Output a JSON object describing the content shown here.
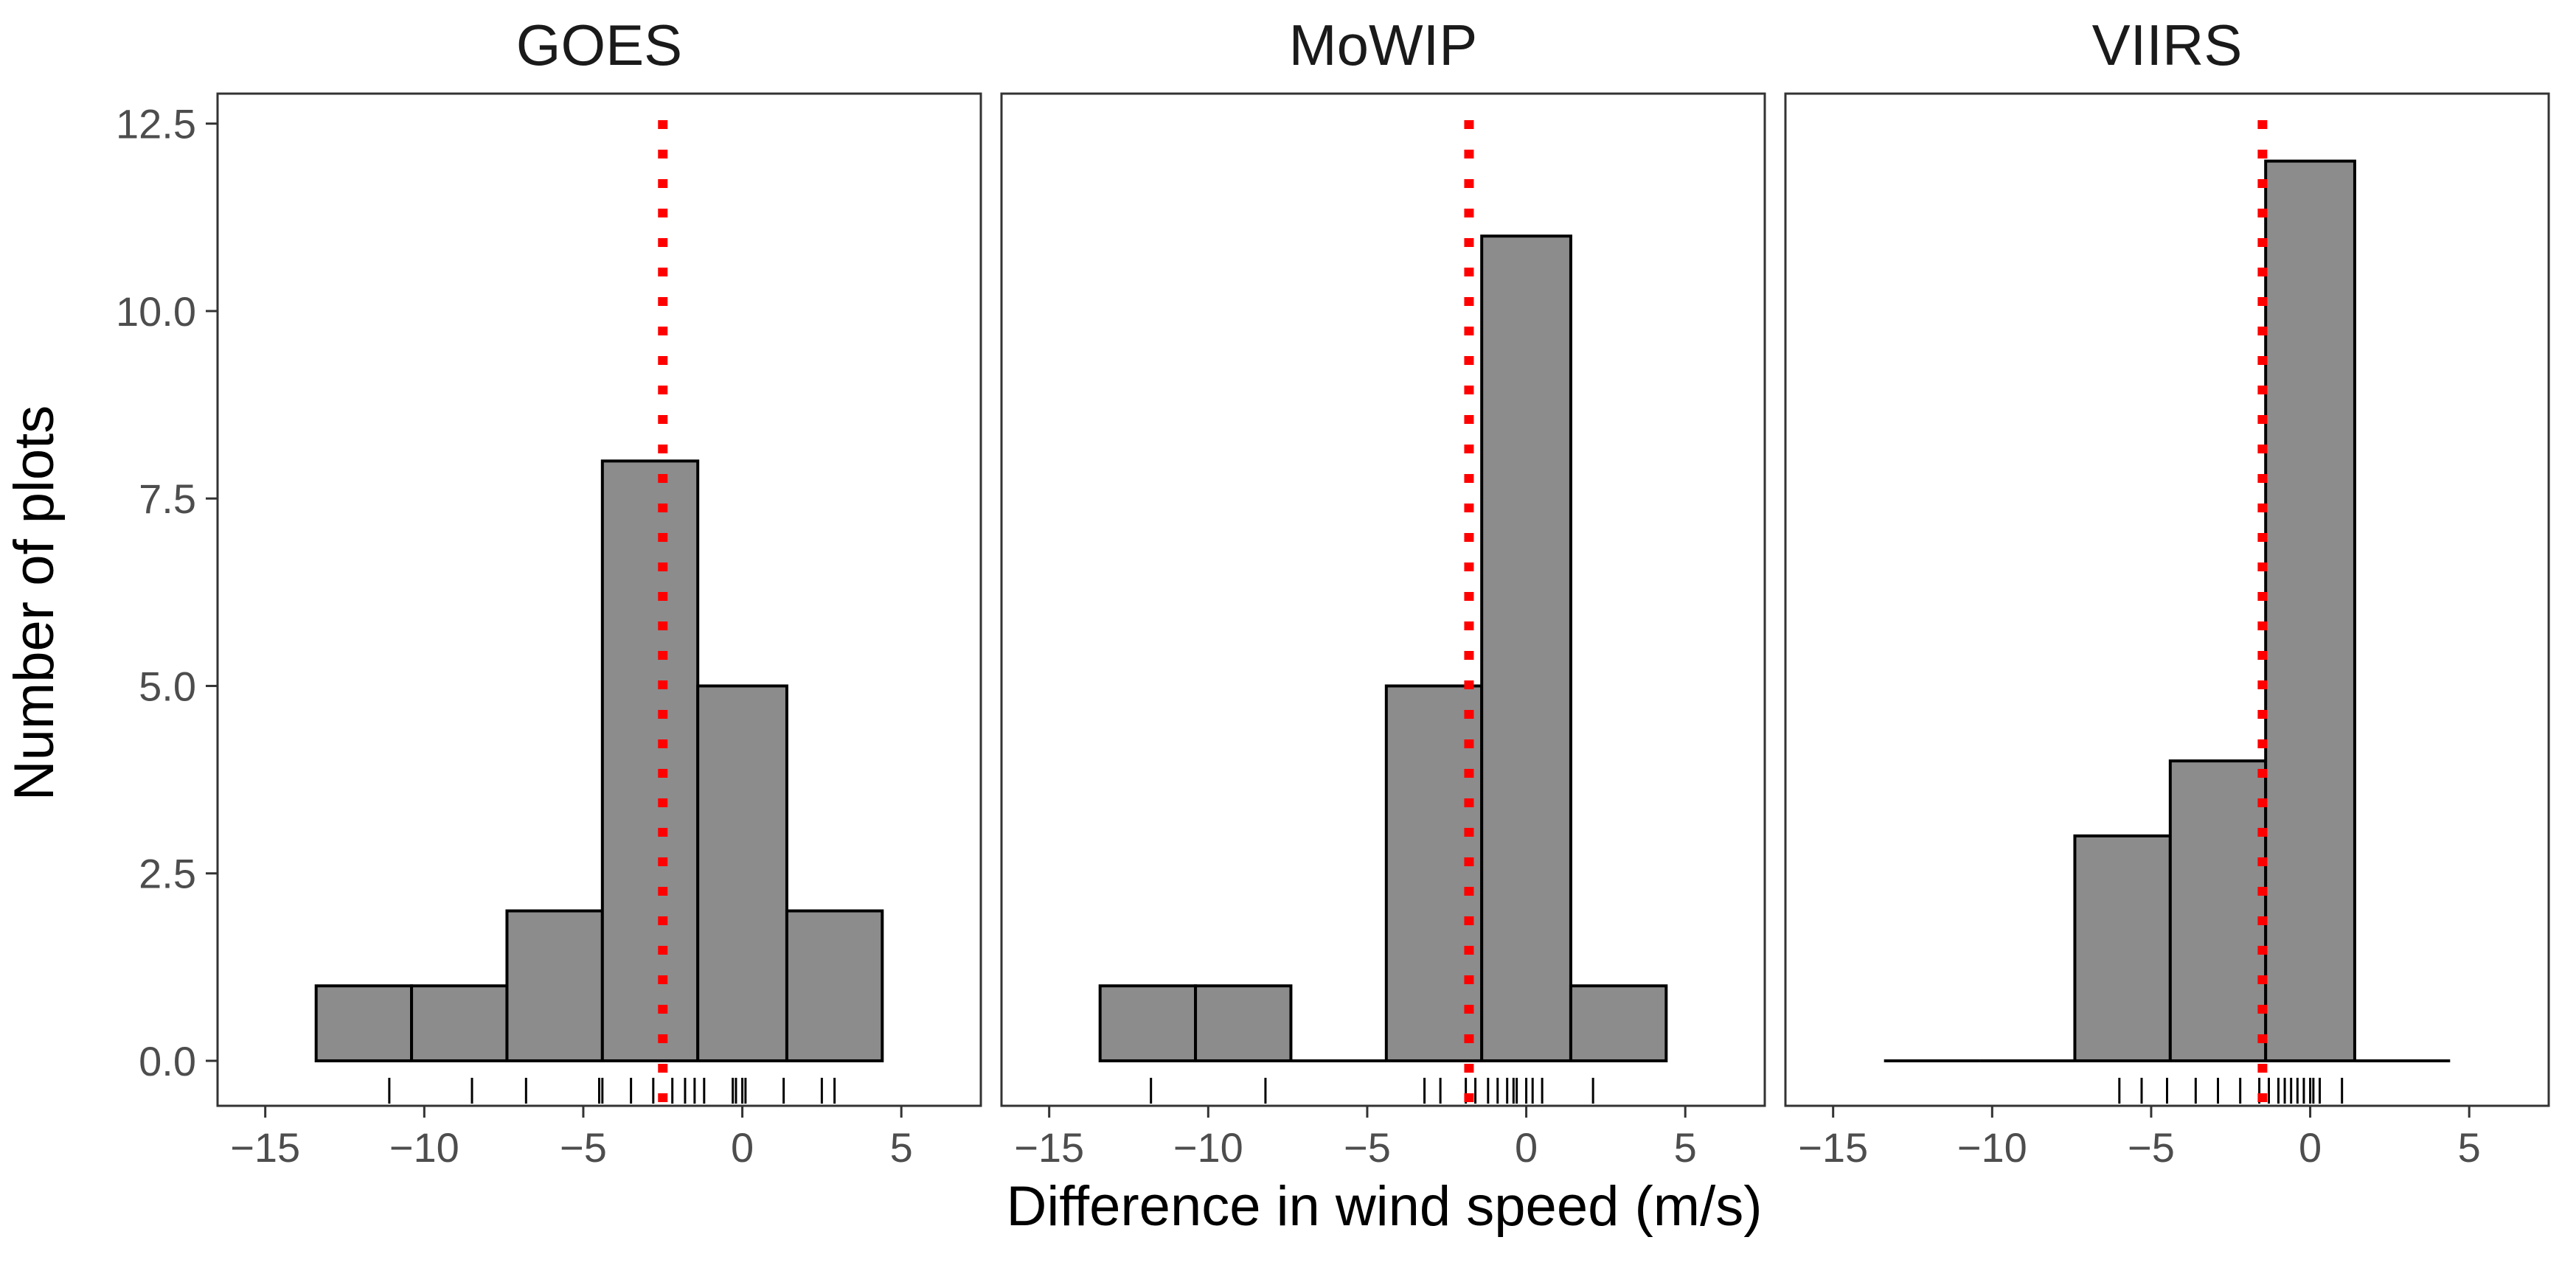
{
  "chart_data": {
    "type": "histogram",
    "xlabel": "Difference in wind speed (m/s)",
    "ylabel": "Number of plots",
    "xlim": [
      -16.5,
      7.5
    ],
    "ylim": [
      -0.6,
      12.9
    ],
    "x_ticks": [
      -15,
      -10,
      -5,
      0,
      5
    ],
    "x_tick_labels": [
      "−15",
      "−10",
      "−5",
      "0",
      "5"
    ],
    "y_ticks": [
      0,
      2.5,
      5,
      7.5,
      10,
      12.5
    ],
    "y_tick_labels": [
      "0.0",
      "2.5",
      "5.0",
      "7.5",
      "10.0",
      "12.5"
    ],
    "bin_edges": [
      -13.4,
      -10.4,
      -7.4,
      -4.4,
      -1.4,
      1.4,
      4.4
    ],
    "bar_fill": "#8c8c8c",
    "bar_stroke": "#000000",
    "mean_line_color": "#ff0000",
    "panels": [
      {
        "title": "GOES",
        "counts": [
          1,
          1,
          2,
          8,
          5,
          2
        ],
        "mean": -2.5,
        "rug": [
          -11.1,
          -8.5,
          -6.8,
          -4.5,
          -4.4,
          -3.5,
          -2.8,
          -2.2,
          -1.8,
          -1.5,
          -1.2,
          -0.3,
          -0.2,
          0.0,
          0.1,
          1.3,
          2.5,
          2.9
        ]
      },
      {
        "title": "MoWIP",
        "counts": [
          1,
          1,
          0,
          5,
          11,
          1
        ],
        "mean": -1.8,
        "rug": [
          -11.8,
          -8.2,
          -3.2,
          -2.7,
          -1.9,
          -1.6,
          -1.2,
          -0.9,
          -0.6,
          -0.4,
          -0.3,
          0.0,
          0.2,
          0.5,
          2.1
        ]
      },
      {
        "title": "VIIRS",
        "counts": [
          0,
          0,
          3,
          4,
          12,
          0
        ],
        "mean": -1.5,
        "rug": [
          -6.0,
          -5.3,
          -4.5,
          -3.6,
          -2.9,
          -2.2,
          -1.6,
          -1.3,
          -1.0,
          -0.8,
          -0.6,
          -0.4,
          -0.2,
          0.0,
          0.1,
          0.3,
          1.0
        ]
      }
    ]
  }
}
